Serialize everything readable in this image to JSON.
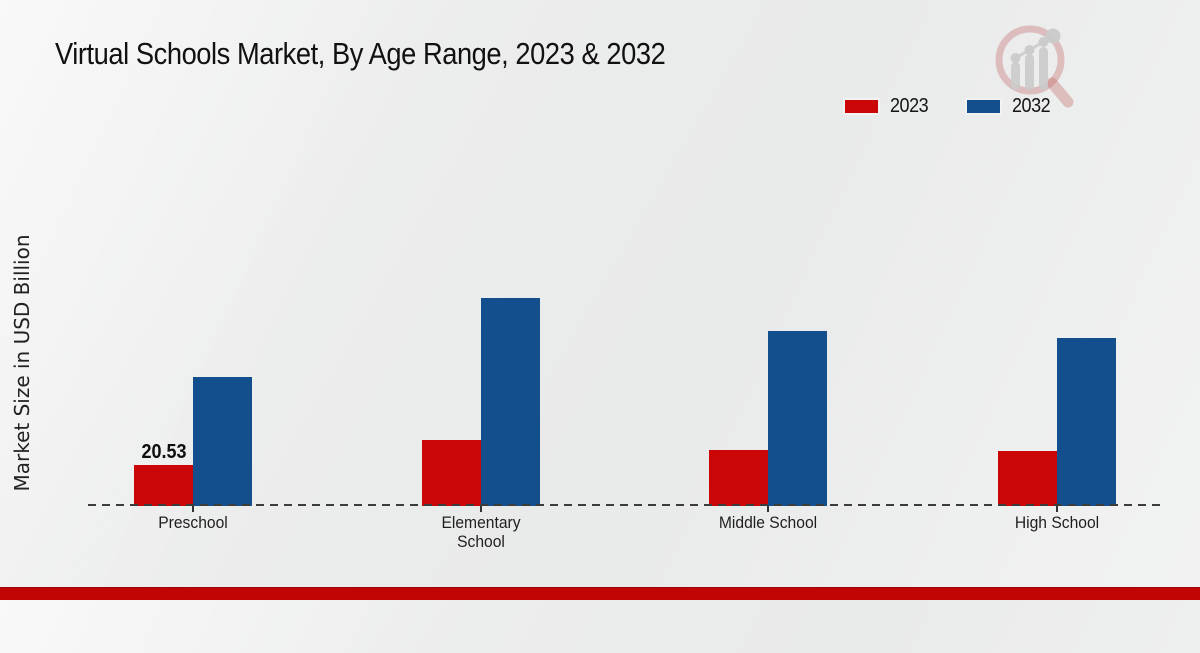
{
  "title": "Virtual Schools Market, By Age Range, 2023 & 2032",
  "y_axis_label": "Market Size in USD Billion",
  "legend": {
    "items": [
      {
        "label": "2023",
        "color": "#cb0606"
      },
      {
        "label": "2032",
        "color": "#124f8c"
      }
    ]
  },
  "footer": {
    "color": "#c10505"
  },
  "watermark": {
    "icon": "magnifier-bar-chart-logo"
  },
  "chart_data": {
    "type": "bar",
    "title": "Virtual Schools Market, By Age Range, 2023 & 2032",
    "xlabel": "",
    "ylabel": "Market Size in USD Billion",
    "categories": [
      "Preschool",
      "Elementary School",
      "Middle School",
      "High School"
    ],
    "series": [
      {
        "name": "2023",
        "color": "#cb0606",
        "values": [
          20.53,
          33.0,
          28.0,
          27.5
        ]
      },
      {
        "name": "2032",
        "color": "#124f8c",
        "values": [
          64.5,
          104.0,
          87.5,
          84.0
        ]
      }
    ],
    "data_labels": [
      {
        "category_index": 0,
        "series_index": 0,
        "text": "20.53"
      }
    ],
    "ylim": [
      0,
      110
    ],
    "grid": false,
    "y_axis_ticks_visible": false,
    "baseline_style": "dashed",
    "legend_position": "top-right"
  }
}
